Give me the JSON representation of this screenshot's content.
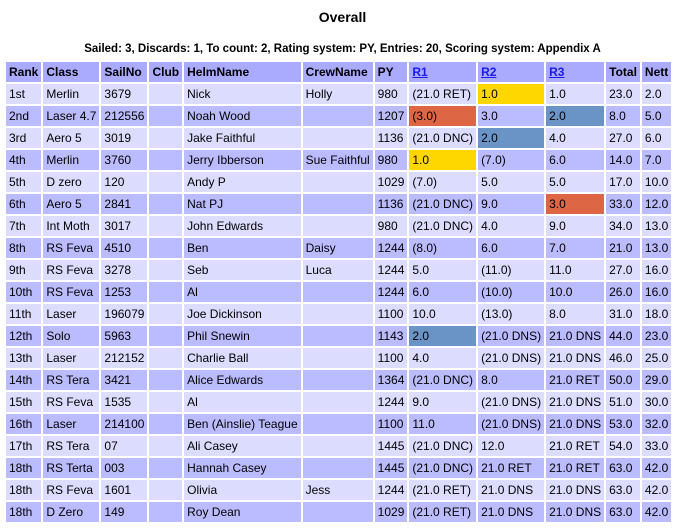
{
  "title": "Overall",
  "info": "Sailed: 3, Discards: 1, To count: 2, Rating system: PY, Entries: 20, Scoring system: Appendix A",
  "headers": [
    "Rank",
    "Class",
    "SailNo",
    "Club",
    "HelmName",
    "CrewName",
    "PY",
    "R1",
    "R2",
    "R3",
    "Total",
    "Nett"
  ],
  "linked_headers": [
    "R1",
    "R2",
    "R3"
  ],
  "colors": {
    "gold": "#ffd700",
    "orange": "#dd6644",
    "blue": "#6a93c6",
    "header": "#aaaaff",
    "row_light": "#dcdcff",
    "row_dark": "#bbbbff"
  },
  "rows": [
    {
      "cells": [
        "1st",
        "Merlin",
        "3679",
        "",
        "Nick",
        "Holly",
        "980",
        "(21.0 RET)",
        "1.0",
        "1.0",
        "23.0",
        "2.0"
      ],
      "highlight": {
        "8": "gold"
      }
    },
    {
      "cells": [
        "2nd",
        "Laser 4.7",
        "212556",
        "",
        "Noah Wood",
        "",
        "1207",
        "(3.0)",
        "3.0",
        "2.0",
        "8.0",
        "5.0"
      ],
      "highlight": {
        "7": "orange",
        "9": "blue"
      }
    },
    {
      "cells": [
        "3rd",
        "Aero 5",
        "3019",
        "",
        "Jake Faithful",
        "",
        "1136",
        "(21.0 DNC)",
        "2.0",
        "4.0",
        "27.0",
        "6.0"
      ],
      "highlight": {
        "8": "blue"
      }
    },
    {
      "cells": [
        "4th",
        "Merlin",
        "3760",
        "",
        "Jerry Ibberson",
        "Sue Faithful",
        "980",
        "1.0",
        "(7.0)",
        "6.0",
        "14.0",
        "7.0"
      ],
      "highlight": {
        "7": "gold"
      }
    },
    {
      "cells": [
        "5th",
        "D zero",
        "120",
        "",
        "Andy P",
        "",
        "1029",
        "(7.0)",
        "5.0",
        "5.0",
        "17.0",
        "10.0"
      ],
      "highlight": {}
    },
    {
      "cells": [
        "6th",
        "Aero 5",
        "2841",
        "",
        "Nat PJ",
        "",
        "1136",
        "(21.0 DNC)",
        "9.0",
        "3.0",
        "33.0",
        "12.0"
      ],
      "highlight": {
        "9": "orange"
      }
    },
    {
      "cells": [
        "7th",
        "Int Moth",
        "3017",
        "",
        "John Edwards",
        "",
        "980",
        "(21.0 DNC)",
        "4.0",
        "9.0",
        "34.0",
        "13.0"
      ],
      "highlight": {}
    },
    {
      "cells": [
        "8th",
        "RS Feva",
        "4510",
        "",
        "Ben",
        "Daisy",
        "1244",
        "(8.0)",
        "6.0",
        "7.0",
        "21.0",
        "13.0"
      ],
      "highlight": {}
    },
    {
      "cells": [
        "9th",
        "RS Feva",
        "3278",
        "",
        "Seb",
        "Luca",
        "1244",
        "5.0",
        "(11.0)",
        "11.0",
        "27.0",
        "16.0"
      ],
      "highlight": {}
    },
    {
      "cells": [
        "10th",
        "RS Feva",
        "1253",
        "",
        "Al",
        "",
        "1244",
        "6.0",
        "(10.0)",
        "10.0",
        "26.0",
        "16.0"
      ],
      "highlight": {}
    },
    {
      "cells": [
        "11th",
        "Laser",
        "196079",
        "",
        "Joe Dickinson",
        "",
        "1100",
        "10.0",
        "(13.0)",
        "8.0",
        "31.0",
        "18.0"
      ],
      "highlight": {}
    },
    {
      "cells": [
        "12th",
        "Solo",
        "5963",
        "",
        "Phil Snewin",
        "",
        "1143",
        "2.0",
        "(21.0 DNS)",
        "21.0 DNS",
        "44.0",
        "23.0"
      ],
      "highlight": {
        "7": "blue"
      }
    },
    {
      "cells": [
        "13th",
        "Laser",
        "212152",
        "",
        "Charlie Ball",
        "",
        "1100",
        "4.0",
        "(21.0 DNS)",
        "21.0 DNS",
        "46.0",
        "25.0"
      ],
      "highlight": {}
    },
    {
      "cells": [
        "14th",
        "RS Tera",
        "3421",
        "",
        "Alice Edwards",
        "",
        "1364",
        "(21.0 DNC)",
        "8.0",
        "21.0 RET",
        "50.0",
        "29.0"
      ],
      "highlight": {}
    },
    {
      "cells": [
        "15th",
        "RS Feva",
        "1535",
        "",
        "Al",
        "",
        "1244",
        "9.0",
        "(21.0 DNS)",
        "21.0 DNS",
        "51.0",
        "30.0"
      ],
      "highlight": {}
    },
    {
      "cells": [
        "16th",
        "Laser",
        "214100",
        "",
        "Ben (Ainslie) Teague",
        "",
        "1100",
        "11.0",
        "(21.0 DNS)",
        "21.0 DNS",
        "53.0",
        "32.0"
      ],
      "highlight": {}
    },
    {
      "cells": [
        "17th",
        "RS Tera",
        "07",
        "",
        "Ali Casey",
        "",
        "1445",
        "(21.0 DNC)",
        "12.0",
        "21.0 RET",
        "54.0",
        "33.0"
      ],
      "highlight": {}
    },
    {
      "cells": [
        "18th",
        "RS Terta",
        "003",
        "",
        "Hannah Casey",
        "",
        "1445",
        "(21.0 DNC)",
        "21.0 RET",
        "21.0 RET",
        "63.0",
        "42.0"
      ],
      "highlight": {}
    },
    {
      "cells": [
        "18th",
        "RS Feva",
        "1601",
        "",
        "Olivia",
        "Jess",
        "1244",
        "(21.0 RET)",
        "21.0 DNS",
        "21.0 DNS",
        "63.0",
        "42.0"
      ],
      "highlight": {}
    },
    {
      "cells": [
        "18th",
        "D Zero",
        "149",
        "",
        "Roy Dean",
        "",
        "1029",
        "(21.0 RET)",
        "21.0 DNS",
        "21.0 DNS",
        "63.0",
        "42.0"
      ],
      "highlight": {}
    }
  ]
}
